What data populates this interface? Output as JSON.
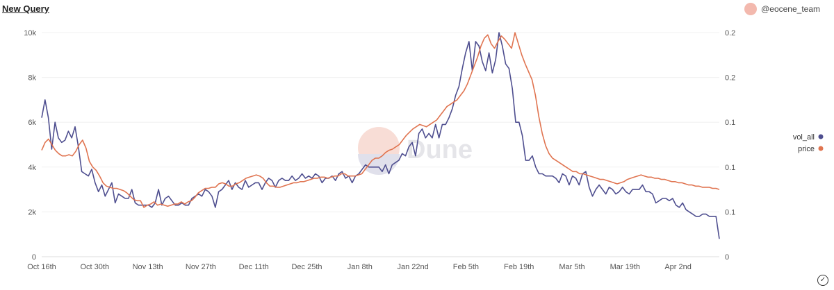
{
  "header": {
    "title": "New Query",
    "author": "@eocene_team"
  },
  "chart_data": {
    "type": "line",
    "x_tick_labels": [
      "Oct 16th",
      "Oct 30th",
      "Nov 13th",
      "Nov 27th",
      "Dec 11th",
      "Dec 25th",
      "Jan 8th",
      "Jan 22nd",
      "Feb 5th",
      "Feb 19th",
      "Mar 5th",
      "Mar 19th",
      "Apr 2nd"
    ],
    "y_left_ticks": [
      "0",
      "2k",
      "4k",
      "6k",
      "8k",
      "10k"
    ],
    "y_right_ticks": [
      "0",
      "0.1",
      "0.1",
      "0.1",
      "0.2",
      "0.2"
    ],
    "ylim_left": [
      0,
      10000
    ],
    "ylim_right": [
      0,
      0.2
    ],
    "grid": true,
    "legend_position": "right",
    "watermark": "Dune",
    "series": [
      {
        "name": "vol_all",
        "axis": "left",
        "color": "#4e4e8f",
        "values": [
          6200,
          7000,
          6200,
          4800,
          6000,
          5300,
          5100,
          5200,
          5600,
          5300,
          5800,
          4900,
          3800,
          3700,
          3600,
          3900,
          3300,
          2900,
          3200,
          2700,
          3000,
          3300,
          2400,
          2800,
          2700,
          2600,
          2600,
          3000,
          2400,
          2300,
          2300,
          2300,
          2300,
          2200,
          2400,
          3000,
          2300,
          2600,
          2700,
          2500,
          2300,
          2300,
          2400,
          2300,
          2300,
          2600,
          2700,
          2800,
          2700,
          3000,
          2900,
          2700,
          2200,
          2900,
          3000,
          3200,
          3400,
          3000,
          3300,
          3100,
          3000,
          3400,
          3100,
          3200,
          3300,
          3300,
          3000,
          3300,
          3500,
          3400,
          3100,
          3400,
          3500,
          3400,
          3400,
          3600,
          3400,
          3500,
          3700,
          3500,
          3600,
          3500,
          3700,
          3600,
          3300,
          3500,
          3500,
          3600,
          3400,
          3700,
          3800,
          3500,
          3600,
          3300,
          3600,
          3700,
          3900,
          4100,
          4000,
          4000,
          4000,
          4000,
          3800,
          4100,
          3700,
          4100,
          4200,
          4300,
          4600,
          4500,
          4900,
          5100,
          4500,
          5500,
          5700,
          5300,
          5500,
          5300,
          5900,
          5300,
          5900,
          5900,
          6200,
          6600,
          7200,
          7600,
          8400,
          9100,
          9600,
          8300,
          9600,
          9400,
          8700,
          8300,
          9100,
          8200,
          8800,
          10000,
          9400,
          8600,
          8400,
          7500,
          6000,
          6000,
          5400,
          4300,
          4300,
          4500,
          4000,
          3700,
          3700,
          3600,
          3600,
          3600,
          3500,
          3300,
          3700,
          3600,
          3200,
          3600,
          3500,
          3200,
          3700,
          3800,
          3100,
          2700,
          3000,
          3200,
          3000,
          2800,
          3100,
          3000,
          2800,
          2900,
          3100,
          2900,
          2800,
          3000,
          3000,
          3000,
          3200,
          2900,
          2900,
          2800,
          2400,
          2500,
          2600,
          2600,
          2500,
          2600,
          2300,
          2200,
          2400,
          2100,
          2000,
          1900,
          1800,
          1800,
          1900,
          1900,
          1800,
          1800,
          1800,
          800
        ]
      },
      {
        "name": "price",
        "axis": "right",
        "color": "#e07450",
        "values": [
          0.095,
          0.102,
          0.105,
          0.1,
          0.095,
          0.092,
          0.09,
          0.09,
          0.091,
          0.09,
          0.094,
          0.1,
          0.104,
          0.097,
          0.085,
          0.08,
          0.077,
          0.072,
          0.066,
          0.063,
          0.062,
          0.061,
          0.061,
          0.06,
          0.059,
          0.057,
          0.054,
          0.051,
          0.05,
          0.05,
          0.044,
          0.046,
          0.047,
          0.049,
          0.046,
          0.047,
          0.046,
          0.045,
          0.046,
          0.047,
          0.047,
          0.049,
          0.047,
          0.049,
          0.05,
          0.053,
          0.057,
          0.059,
          0.061,
          0.061,
          0.062,
          0.062,
          0.065,
          0.066,
          0.065,
          0.063,
          0.063,
          0.065,
          0.066,
          0.068,
          0.07,
          0.071,
          0.072,
          0.073,
          0.072,
          0.07,
          0.066,
          0.063,
          0.063,
          0.062,
          0.062,
          0.063,
          0.064,
          0.065,
          0.066,
          0.066,
          0.067,
          0.067,
          0.068,
          0.069,
          0.07,
          0.07,
          0.071,
          0.071,
          0.07,
          0.071,
          0.072,
          0.072,
          0.074,
          0.074,
          0.072,
          0.072,
          0.072,
          0.073,
          0.074,
          0.078,
          0.082,
          0.086,
          0.088,
          0.088,
          0.09,
          0.093,
          0.095,
          0.096,
          0.098,
          0.1,
          0.104,
          0.108,
          0.111,
          0.114,
          0.116,
          0.118,
          0.117,
          0.116,
          0.118,
          0.12,
          0.122,
          0.126,
          0.13,
          0.134,
          0.136,
          0.138,
          0.14,
          0.144,
          0.148,
          0.154,
          0.162,
          0.17,
          0.178,
          0.188,
          0.195,
          0.198,
          0.19,
          0.186,
          0.192,
          0.197,
          0.194,
          0.19,
          0.186,
          0.2,
          0.19,
          0.18,
          0.172,
          0.165,
          0.158,
          0.144,
          0.125,
          0.11,
          0.099,
          0.092,
          0.088,
          0.086,
          0.084,
          0.082,
          0.08,
          0.078,
          0.076,
          0.076,
          0.074,
          0.074,
          0.073,
          0.072,
          0.071,
          0.07,
          0.069,
          0.069,
          0.068,
          0.067,
          0.066,
          0.065,
          0.066,
          0.067,
          0.069,
          0.07,
          0.071,
          0.072,
          0.073,
          0.072,
          0.071,
          0.071,
          0.07,
          0.07,
          0.069,
          0.069,
          0.068,
          0.067,
          0.067,
          0.066,
          0.066,
          0.065,
          0.064,
          0.064,
          0.063,
          0.063,
          0.062,
          0.062,
          0.062,
          0.061,
          0.061,
          0.06
        ]
      }
    ]
  }
}
